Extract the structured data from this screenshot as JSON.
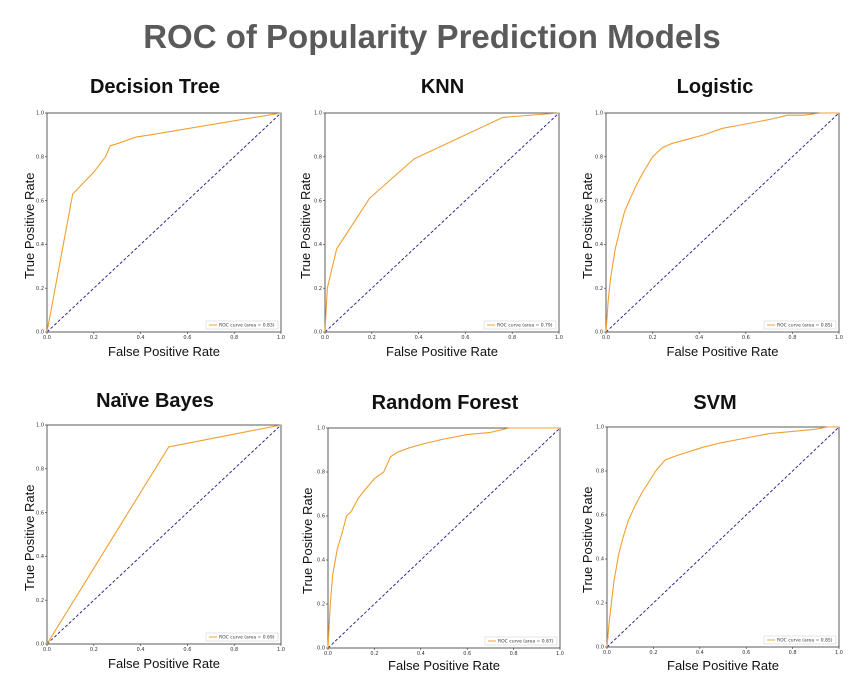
{
  "title": "ROC of Popularity Prediction Models",
  "colors": {
    "roc": "#f0a030",
    "diagonal": "#1a1a8c",
    "title": "#5a5a5a"
  },
  "chart_data": [
    {
      "type": "line",
      "title": "Decision Tree",
      "xlabel": "False Positive Rate",
      "ylabel": "True Positive Rate",
      "xlim": [
        0,
        1
      ],
      "ylim": [
        0,
        1
      ],
      "xticks": [
        "0.0",
        "0.2",
        "0.4",
        "0.6",
        "0.8",
        "1.0"
      ],
      "yticks": [
        "0.0",
        "0.2",
        "0.4",
        "0.6",
        "0.8",
        "1.0"
      ],
      "legend": "ROC curve (area = 0.83)",
      "legend_position": "bottom-right",
      "series": [
        {
          "x": [
            0,
            0.11,
            0.2,
            0.25,
            0.27,
            0.3,
            0.38,
            0.44,
            1.0
          ],
          "y": [
            0,
            0.63,
            0.73,
            0.8,
            0.85,
            0.86,
            0.89,
            0.9,
            1.0
          ]
        }
      ]
    },
    {
      "type": "line",
      "title": "KNN",
      "xlabel": "False Positive Rate",
      "ylabel": "True Positive Rate",
      "xlim": [
        0,
        1
      ],
      "ylim": [
        0,
        1
      ],
      "xticks": [
        "0.0",
        "0.2",
        "0.4",
        "0.6",
        "0.8",
        "1.0"
      ],
      "yticks": [
        "0.0",
        "0.2",
        "0.4",
        "0.6",
        "0.8",
        "1.0"
      ],
      "legend": "ROC curve (area = 0.79)",
      "legend_position": "bottom-right",
      "series": [
        {
          "x": [
            0,
            0.01,
            0.05,
            0.19,
            0.38,
            0.76,
            1.0
          ],
          "y": [
            0,
            0.2,
            0.38,
            0.61,
            0.79,
            0.98,
            1.0
          ]
        }
      ]
    },
    {
      "type": "line",
      "title": "Logistic",
      "xlabel": "False Positive Rate",
      "ylabel": "True Positive Rate",
      "xlim": [
        0,
        1
      ],
      "ylim": [
        0,
        1
      ],
      "xticks": [
        "0.0",
        "0.2",
        "0.4",
        "0.6",
        "0.8",
        "1.0"
      ],
      "yticks": [
        "0.0",
        "0.2",
        "0.4",
        "0.6",
        "0.8",
        "1.0"
      ],
      "legend": "ROC curve (area = 0.85)",
      "legend_position": "bottom-right",
      "series": [
        {
          "x": [
            0,
            0.01,
            0.02,
            0.04,
            0.06,
            0.08,
            0.1,
            0.13,
            0.16,
            0.2,
            0.24,
            0.28,
            0.35,
            0.42,
            0.5,
            0.6,
            0.7,
            0.78,
            0.85,
            0.92,
            1.0
          ],
          "y": [
            0,
            0.15,
            0.25,
            0.38,
            0.47,
            0.55,
            0.6,
            0.67,
            0.73,
            0.8,
            0.84,
            0.86,
            0.88,
            0.9,
            0.93,
            0.95,
            0.97,
            0.99,
            0.99,
            1.0,
            1.0
          ]
        }
      ]
    },
    {
      "type": "line",
      "title": "Naïve Bayes",
      "xlabel": "False Positive Rate",
      "ylabel": "True Positive Rate",
      "xlim": [
        0,
        1
      ],
      "ylim": [
        0,
        1
      ],
      "xticks": [
        "0.0",
        "0.2",
        "0.4",
        "0.6",
        "0.8",
        "1.0"
      ],
      "yticks": [
        "0.0",
        "0.2",
        "0.4",
        "0.6",
        "0.8",
        "1.0"
      ],
      "legend": "ROC curve (area = 0.69)",
      "legend_position": "bottom-right",
      "series": [
        {
          "x": [
            0,
            0.52,
            1.0
          ],
          "y": [
            0,
            0.9,
            1.0
          ]
        }
      ]
    },
    {
      "type": "line",
      "title": "Random Forest",
      "xlabel": "False Positive Rate",
      "ylabel": "True Positive Rate",
      "xlim": [
        0,
        1
      ],
      "ylim": [
        0,
        1
      ],
      "xticks": [
        "0.0",
        "0.2",
        "0.4",
        "0.6",
        "0.8",
        "1.0"
      ],
      "yticks": [
        "0.0",
        "0.2",
        "0.4",
        "0.6",
        "0.8",
        "1.0"
      ],
      "legend": "ROC curve (area = 0.87)",
      "legend_position": "bottom-right",
      "series": [
        {
          "x": [
            0,
            0.01,
            0.02,
            0.04,
            0.06,
            0.08,
            0.1,
            0.13,
            0.16,
            0.2,
            0.24,
            0.27,
            0.3,
            0.35,
            0.42,
            0.5,
            0.6,
            0.7,
            0.78,
            0.88,
            1.0
          ],
          "y": [
            0,
            0.2,
            0.33,
            0.45,
            0.52,
            0.6,
            0.62,
            0.68,
            0.72,
            0.77,
            0.8,
            0.87,
            0.89,
            0.91,
            0.93,
            0.95,
            0.97,
            0.98,
            1.0,
            1.0,
            1.0
          ]
        }
      ]
    },
    {
      "type": "line",
      "title": "SVM",
      "xlabel": "False Positive Rate",
      "ylabel": "True Positive Rate",
      "xlim": [
        0,
        1
      ],
      "ylim": [
        0,
        1
      ],
      "xticks": [
        "0.0",
        "0.2",
        "0.4",
        "0.6",
        "0.8",
        "1.0"
      ],
      "yticks": [
        "0.0",
        "0.2",
        "0.4",
        "0.6",
        "0.8",
        "1.0"
      ],
      "legend": "ROC curve (area = 0.85)",
      "legend_position": "bottom-right",
      "series": [
        {
          "x": [
            0,
            0.01,
            0.03,
            0.05,
            0.07,
            0.09,
            0.12,
            0.15,
            0.18,
            0.21,
            0.25,
            0.3,
            0.36,
            0.42,
            0.5,
            0.6,
            0.7,
            0.8,
            0.9,
            0.95,
            1.0
          ],
          "y": [
            0,
            0.12,
            0.3,
            0.42,
            0.5,
            0.57,
            0.64,
            0.7,
            0.75,
            0.8,
            0.85,
            0.87,
            0.89,
            0.91,
            0.93,
            0.95,
            0.97,
            0.98,
            0.99,
            1.0,
            1.0
          ]
        }
      ]
    }
  ]
}
